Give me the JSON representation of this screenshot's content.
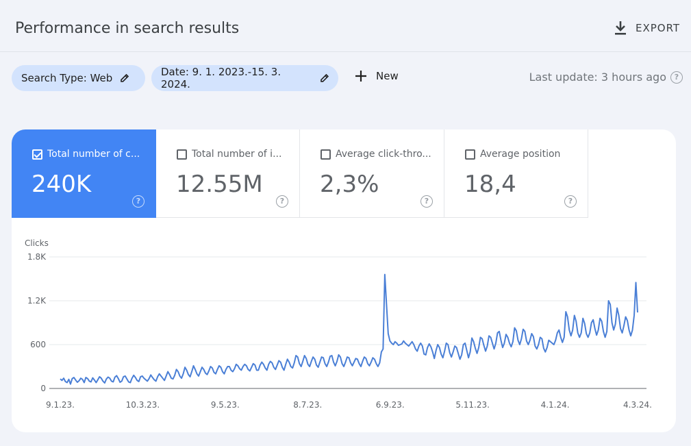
{
  "header": {
    "title": "Performance in search results",
    "export_label": "EXPORT",
    "export_icon": "download-icon"
  },
  "filters": {
    "search_type": "Search Type: Web",
    "date": "Date: 9. 1. 2023.-15. 3. 2024.",
    "new_label": "New",
    "last_update": "Last update: 3 hours ago"
  },
  "metrics": [
    {
      "label": "Total number of c...",
      "value": "240K",
      "checked": true
    },
    {
      "label": "Total number of i...",
      "value": "12.55M",
      "checked": false
    },
    {
      "label": "Average click-thro...",
      "value": "2,3%",
      "checked": false
    },
    {
      "label": "Average position",
      "value": "18,4",
      "checked": false
    }
  ],
  "colors": {
    "accent": "#4285f4",
    "chip": "#d3e3fd",
    "line": "#4a7fd6",
    "background": "#f1f3f9"
  },
  "chart_data": {
    "type": "line",
    "ylabel": "Clicks",
    "ylim": [
      0,
      1800
    ],
    "yticks": [
      0,
      600,
      1200,
      1800
    ],
    "ytick_labels": [
      "0",
      "600",
      "1.2K",
      "1.8K"
    ],
    "x_start": "2023-01-09",
    "x_end": "2024-03-15",
    "xtick_labels": [
      "9.1.23.",
      "10.3.23.",
      "9.5.23.",
      "8.7.23.",
      "6.9.23.",
      "5.11.23.",
      "4.1.24.",
      "4.3.24."
    ],
    "grid": true,
    "series": [
      {
        "color": "#4a7fd6",
        "values": [
          130,
          110,
          140,
          95,
          80,
          125,
          60,
          135,
          150,
          115,
          85,
          105,
          140,
          125,
          80,
          150,
          135,
          100,
          90,
          145,
          115,
          80,
          120,
          160,
          140,
          100,
          75,
          130,
          155,
          140,
          100,
          90,
          155,
          175,
          135,
          85,
          100,
          160,
          170,
          130,
          90,
          80,
          140,
          180,
          150,
          110,
          95,
          160,
          170,
          140,
          120,
          100,
          135,
          185,
          150,
          120,
          100,
          160,
          200,
          170,
          140,
          110,
          170,
          230,
          190,
          140,
          130,
          180,
          260,
          230,
          170,
          140,
          200,
          290,
          250,
          190,
          160,
          230,
          310,
          260,
          200,
          170,
          230,
          290,
          260,
          210,
          190,
          240,
          300,
          280,
          220,
          200,
          260,
          310,
          290,
          230,
          200,
          260,
          300,
          300,
          250,
          230,
          270,
          330,
          310,
          270,
          250,
          300,
          330,
          310,
          260,
          240,
          290,
          340,
          320,
          250,
          250,
          320,
          360,
          330,
          280,
          250,
          330,
          370,
          350,
          290,
          260,
          320,
          380,
          360,
          290,
          250,
          330,
          400,
          360,
          300,
          280,
          350,
          450,
          430,
          340,
          300,
          370,
          450,
          410,
          330,
          300,
          370,
          430,
          400,
          320,
          290,
          360,
          430,
          420,
          340,
          300,
          360,
          440,
          450,
          360,
          310,
          370,
          460,
          430,
          340,
          300,
          360,
          430,
          420,
          350,
          310,
          360,
          410,
          400,
          340,
          300,
          370,
          430,
          410,
          340,
          310,
          360,
          420,
          400,
          340,
          300,
          350,
          500,
          540,
          1560,
          1150,
          750,
          650,
          620,
          600,
          640,
          620,
          590,
          600,
          610,
          650,
          620,
          600,
          580,
          610,
          640,
          600,
          540,
          510,
          580,
          620,
          580,
          470,
          460,
          560,
          610,
          570,
          500,
          410,
          520,
          600,
          560,
          470,
          420,
          510,
          620,
          600,
          490,
          430,
          500,
          580,
          560,
          480,
          400,
          460,
          600,
          620,
          520,
          420,
          500,
          690,
          640,
          550,
          480,
          560,
          700,
          680,
          590,
          510,
          580,
          720,
          700,
          620,
          540,
          620,
          760,
          780,
          660,
          560,
          620,
          740,
          700,
          620,
          570,
          640,
          830,
          790,
          660,
          600,
          680,
          810,
          780,
          650,
          600,
          660,
          750,
          710,
          580,
          540,
          600,
          700,
          680,
          550,
          500,
          560,
          660,
          640,
          620,
          600,
          660,
          760,
          800,
          700,
          630,
          700,
          1050,
          980,
          800,
          720,
          800,
          1000,
          920,
          760,
          700,
          760,
          960,
          890,
          750,
          700,
          760,
          900,
          940,
          820,
          730,
          800,
          960,
          920,
          780,
          700,
          780,
          1200,
          1150,
          900,
          800,
          880,
          1100,
          1000,
          820,
          760,
          860,
          980,
          930,
          800,
          720,
          800,
          1000,
          1450,
          1040
        ]
      }
    ]
  }
}
